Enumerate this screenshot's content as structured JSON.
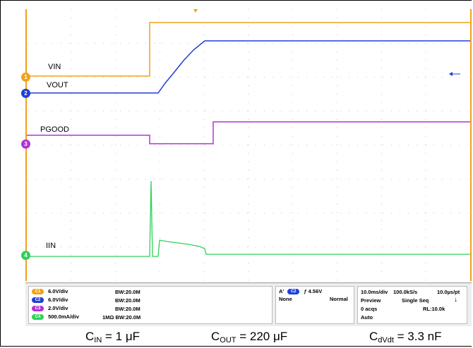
{
  "channels": [
    {
      "id": "1",
      "label": "VIN",
      "color": "#f0a21c"
    },
    {
      "id": "2",
      "label": "VOUT",
      "color": "#1f3fd8"
    },
    {
      "id": "3",
      "label": "PGOOD",
      "color": "#b233d6"
    },
    {
      "id": "4",
      "label": "IIN",
      "color": "#2fd15a"
    }
  ],
  "status": {
    "ch_rows": [
      {
        "chip": "C1",
        "scale": "6.0V/div",
        "bw": "BW:20.0M",
        "color": "#f0a21c"
      },
      {
        "chip": "C2",
        "scale": "6.0V/div",
        "bw": "BW:20.0M",
        "color": "#1f3fd8"
      },
      {
        "chip": "C3",
        "scale": "2.0V/div",
        "bw": "BW:20.0M",
        "color": "#b233d6"
      },
      {
        "chip": "C4",
        "scale": "500.0mA/div",
        "bw": "1MΩ BW:20.0M",
        "color": "#2fd15a"
      }
    ],
    "trigger": {
      "tag": "A'",
      "chip": "C2",
      "slope": "ƒ",
      "level": "4.56V",
      "coupling": "None",
      "mode": "Normal"
    },
    "timebase": {
      "line1": {
        "tdiv": "10.0ms/div",
        "rate": "100.0kS/s",
        "pt": "10.0µs/pt"
      },
      "line2": {
        "left": "Preview",
        "right": "Single Seq"
      },
      "line3": {
        "left": "0 acqs",
        "right": "RL:10.0k"
      },
      "line4": {
        "left": "Auto"
      }
    }
  },
  "caption": {
    "cin_main": "C",
    "cin_sub": "IN",
    "cin_val": " = 1 μF",
    "cout_main": "C",
    "cout_sub": "OUT",
    "cout_val": " = 220 μF",
    "cdvdt_main": "C",
    "cdvdt_sub": "dVdt",
    "cdvdt_val": " = 3.3 nF"
  }
}
